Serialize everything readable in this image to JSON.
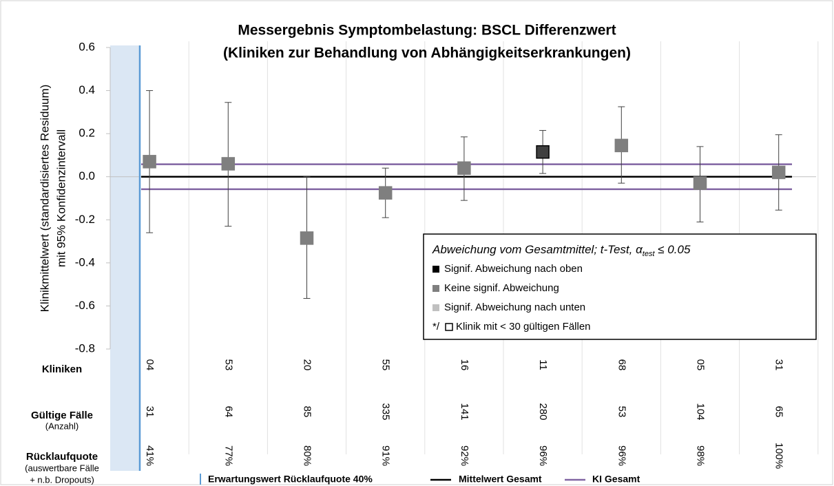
{
  "chart_data": {
    "type": "errorbar",
    "title": [
      "Messergebnis Symptombelastung: BSCL Differenzwert",
      "(Kliniken zur Behandlung von Abhängigkeitserkrankungen)"
    ],
    "y_label": [
      "Klinikmittelwert (standardisiertes Residuum)",
      "mit 95% Konfidenzintervall"
    ],
    "categories": [
      "04",
      "53",
      "20",
      "55",
      "16",
      "11",
      "68",
      "05",
      "31"
    ],
    "series": [
      {
        "values": [
          0.07,
          0.06,
          -0.285,
          -0.075,
          0.04,
          0.115,
          0.145,
          -0.03,
          0.02
        ],
        "lower": [
          -0.26,
          -0.23,
          -0.565,
          -0.19,
          -0.11,
          0.015,
          -0.03,
          -0.21,
          -0.155
        ],
        "upper": [
          0.4,
          0.345,
          0.0,
          0.04,
          0.185,
          0.215,
          0.325,
          0.14,
          0.195
        ],
        "point_colors": [
          "#7f7f7f",
          "#7f7f7f",
          "#7f7f7f",
          "#7f7f7f",
          "#7f7f7f",
          "#404040",
          "#7f7f7f",
          "#7f7f7f",
          "#7f7f7f"
        ]
      }
    ],
    "ylim": [
      -0.8,
      0.6
    ],
    "yticks": [
      0.6,
      0.4,
      0.2,
      {
        "value": 0,
        "label": "0.0"
      },
      -0.2,
      -0.4,
      -0.6,
      -0.8
    ],
    "reference_lines": [
      {
        "name": "Mittelwert Gesamt",
        "values": [
          0
        ],
        "color": "#000000"
      },
      {
        "name": "KI Gesamt",
        "values": [
          0.058,
          -0.058
        ],
        "color": "#8064a2"
      }
    ],
    "expected_line": {
      "name": "Erwartungswert Rücklaufquote 40%",
      "color": "#5b9bd5"
    },
    "legend": {
      "title": "Abweichung vom Gesamtmittel;  t-Test, α",
      "title_sub": "test",
      "title_end": " ≤ 0.05",
      "entries": [
        {
          "label": "Signif. Abweichung nach oben",
          "color": "#000000"
        },
        {
          "label": "Keine signif. Abweichung",
          "color": "#7f7f7f"
        },
        {
          "label": "Signif. Abweichung nach unten",
          "color": "#c0c0c0"
        }
      ],
      "note_prefix": "*/",
      "note": "Klinik mit < 30 gültigen Fällen"
    },
    "table": {
      "rows": [
        {
          "label": [
            "Kliniken"
          ],
          "cells": [
            "04",
            "53",
            "20",
            "55",
            "16",
            "11",
            "68",
            "05",
            "31"
          ]
        },
        {
          "label": [
            "Gültige Fälle",
            "(Anzahl)"
          ],
          "cells": [
            "31",
            "64",
            "85",
            "335",
            "141",
            "280",
            "53",
            "104",
            "65"
          ]
        },
        {
          "label": [
            "Rücklaufquote",
            "(auswertbare Fälle",
            "+ n.b. Dropouts)"
          ],
          "cells": [
            "41%",
            "77%",
            "80%",
            "91%",
            "92%",
            "96%",
            "96%",
            "98%",
            "100%"
          ]
        }
      ]
    }
  }
}
